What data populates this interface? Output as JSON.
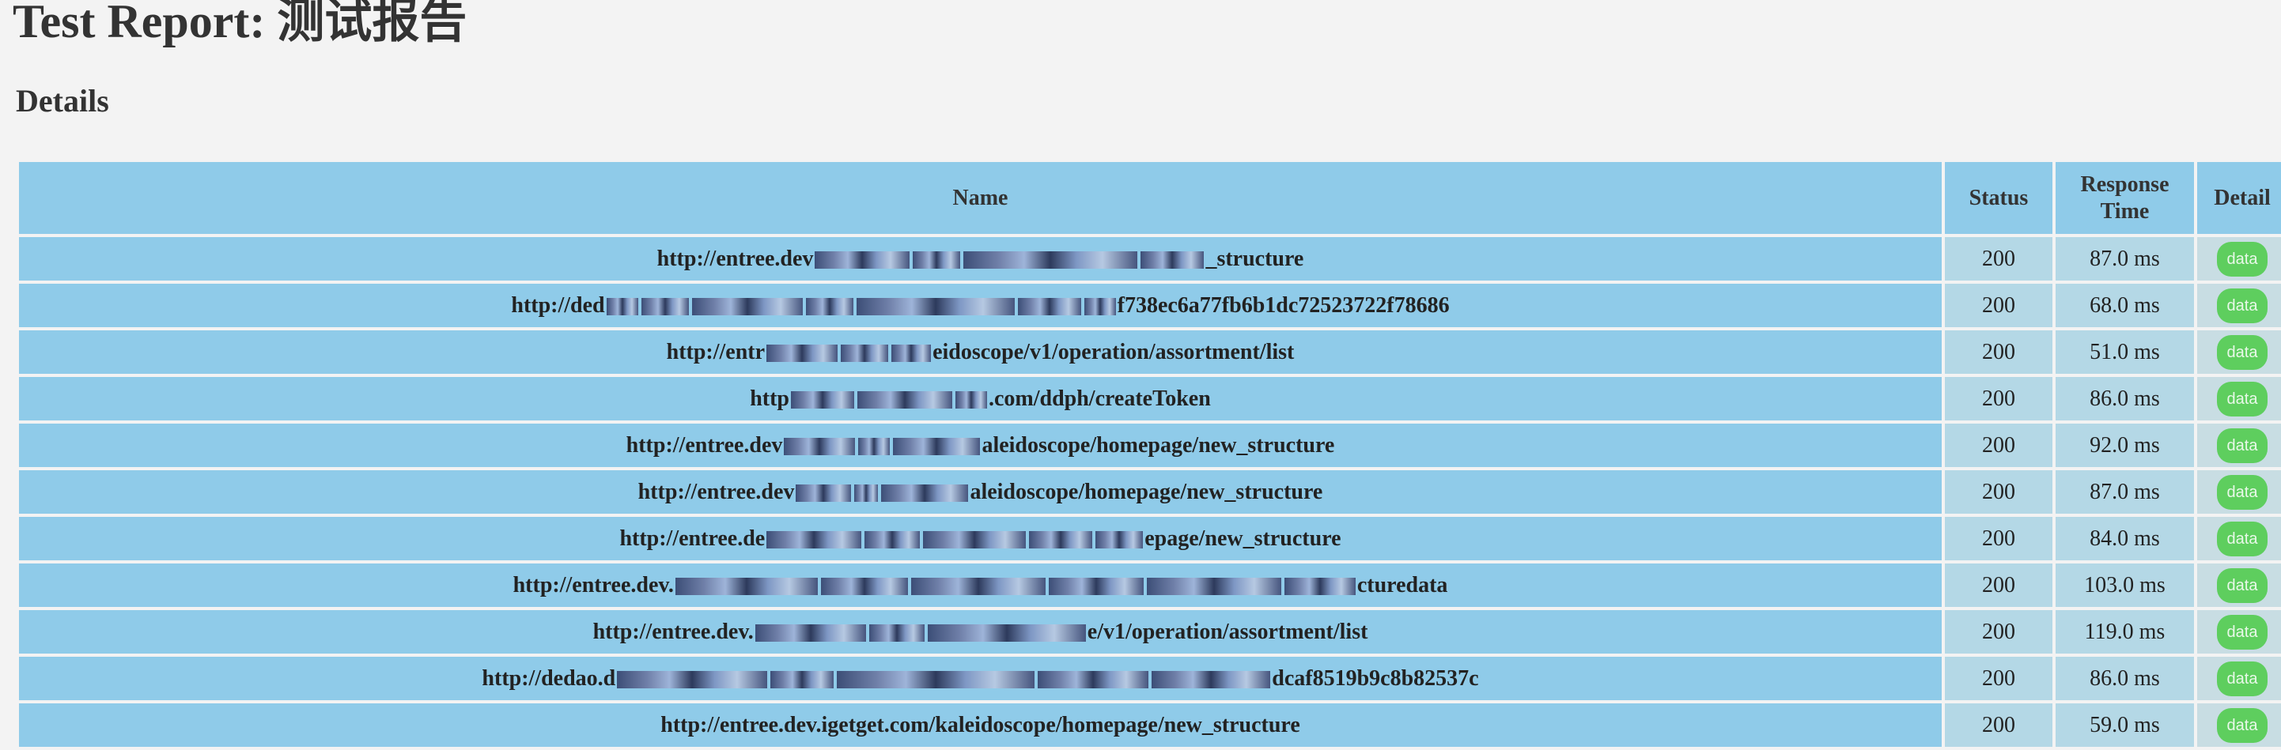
{
  "page": {
    "title": "Test Report: 测试报告",
    "section": "Details"
  },
  "table": {
    "headers": {
      "name": "Name",
      "status": "Status",
      "response_time": "Response Time",
      "detail": "Detail"
    },
    "rows": [
      {
        "prefix": "http://entree.dev",
        "suffix": "_structure",
        "status": "200",
        "time": "87.0 ms",
        "detail": "data"
      },
      {
        "prefix": "http://ded",
        "suffix": "f738ec6a77fb6b1dc72523722f78686",
        "status": "200",
        "time": "68.0 ms",
        "detail": "data"
      },
      {
        "prefix": "http://entr",
        "suffix": "eidoscope/v1/operation/assortment/list",
        "status": "200",
        "time": "51.0 ms",
        "detail": "data"
      },
      {
        "prefix": "http",
        "suffix": ".com/ddph/createToken",
        "status": "200",
        "time": "86.0 ms",
        "detail": "data"
      },
      {
        "prefix": "http://entree.dev",
        "suffix": "aleidoscope/homepage/new_structure",
        "status": "200",
        "time": "92.0 ms",
        "detail": "data"
      },
      {
        "prefix": "http://entree.dev",
        "suffix": "aleidoscope/homepage/new_structure",
        "status": "200",
        "time": "87.0 ms",
        "detail": "data"
      },
      {
        "prefix": "http://entree.de",
        "suffix": "epage/new_structure",
        "status": "200",
        "time": "84.0 ms",
        "detail": "data"
      },
      {
        "prefix": "http://entree.dev.",
        "suffix": "cturedata",
        "status": "200",
        "time": "103.0 ms",
        "detail": "data"
      },
      {
        "prefix": "http://entree.dev.",
        "suffix": "e/v1/operation/assortment/list",
        "status": "200",
        "time": "119.0 ms",
        "detail": "data"
      },
      {
        "prefix": "http://dedao.d",
        "suffix": "dcaf8519b9c8b82537c",
        "status": "200",
        "time": "86.0 ms",
        "detail": "data"
      },
      {
        "prefix": "http://entree.dev.igetget.com/kaleidoscope/homepage/new_structure",
        "suffix": "",
        "status": "200",
        "time": "59.0 ms",
        "detail": "data"
      }
    ]
  }
}
